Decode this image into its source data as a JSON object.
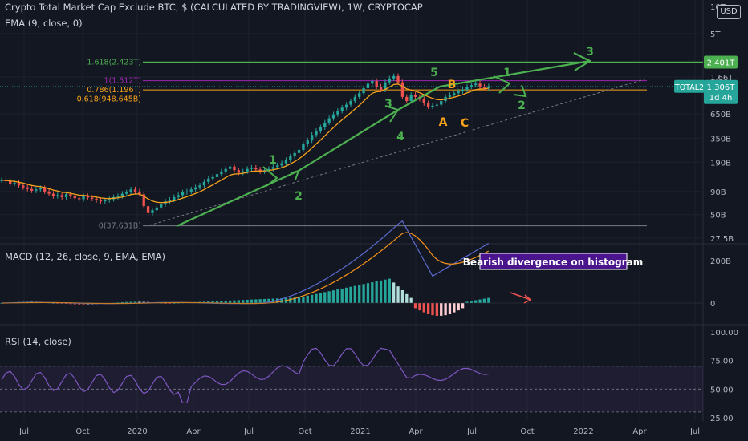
{
  "header": {
    "symbol_title": "Crypto Total Market Cap Exclude BTC, $ (CALCULATED BY TRADINGVIEW), 1W, CRYPTOCAP",
    "ema_title": "EMA (9, close, 0)",
    "currency": "USD"
  },
  "macd_panel": {
    "title": "MACD (12, 26, close, 9, EMA, EMA)"
  },
  "rsi_panel": {
    "title": "RSI (14, close)"
  },
  "colors": {
    "background": "#131722",
    "up": "#26a69a",
    "down": "#ef5350",
    "ema": "#f7a21b",
    "wave": "#4caf50",
    "fib_1618": "#4caf50",
    "fib_1": "#9c27b0",
    "fib_0786": "#f7a21b",
    "fib_0618": "#f7a21b",
    "macd": "#5b6ad0",
    "signal": "#f7931a",
    "rsi": "#7e57c2"
  },
  "chart_data": [
    {
      "type": "candlestick",
      "title": "TOTAL2",
      "yscale": "log",
      "ylim": [
        25000000000,
        10000000000000
      ],
      "y_ticks": [
        "10T",
        "5T",
        "1.66T",
        "650B",
        "350B",
        "190B",
        "90B",
        "50B",
        "27.5B"
      ],
      "x_ticks": [
        "Jul",
        "Oct",
        "2020",
        "Apr",
        "Jul",
        "Oct",
        "2021",
        "Apr",
        "Jul",
        "Oct",
        "2022",
        "Apr",
        "Jul"
      ],
      "fib_levels": [
        {
          "label": "1.618(2.423T)",
          "value": 2423000000000
        },
        {
          "label": "1(1.512T)",
          "value": 1512000000000
        },
        {
          "label": "0.786(1.196T)",
          "value": 1196000000000
        },
        {
          "label": "0.618(948.645B)",
          "value": 948645000000
        },
        {
          "label": "0(37.631B)",
          "value": 37631000000
        }
      ],
      "price_labels": [
        {
          "label": "2.401T"
        },
        {
          "label": "TOTAL2",
          "value_text": "1.306T",
          "sub": "1d 4h"
        }
      ],
      "wave_labels": [
        "1",
        "2",
        "3",
        "4",
        "5",
        "A",
        "B",
        "C",
        "1",
        "2",
        "3"
      ]
    },
    {
      "type": "bar",
      "title": "MACD (12, 26, close, 9, EMA, EMA)",
      "y_ticks": [
        "200B",
        "0"
      ],
      "annotation": "Bearish divergence on histogram"
    },
    {
      "type": "line",
      "title": "RSI (14, close)",
      "ylim": [
        25,
        100
      ],
      "y_ticks": [
        "100.00",
        "75.00",
        "50.00",
        "25.00"
      ],
      "bands": [
        30,
        70
      ]
    }
  ]
}
